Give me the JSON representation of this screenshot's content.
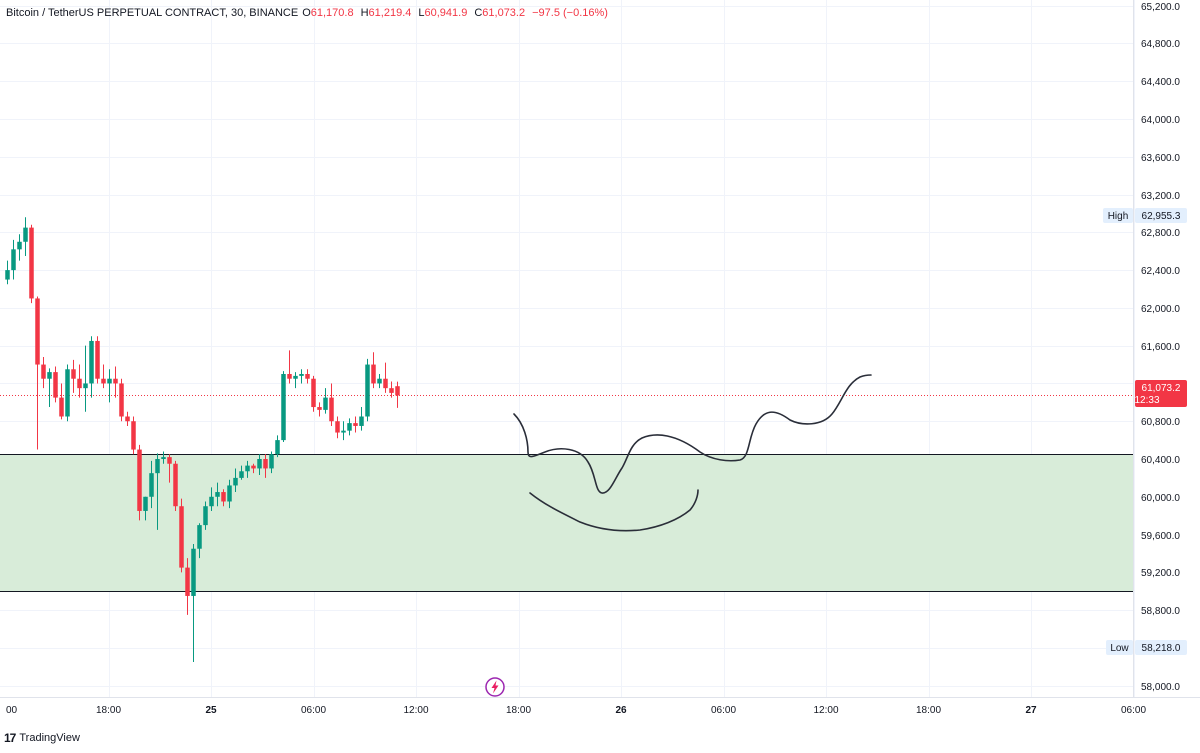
{
  "header": {
    "symbol": "Bitcoin / TetherUS PERPETUAL CONTRACT, 30, BINANCE",
    "o_label": "O",
    "o_value": "61,170.8",
    "h_label": "H",
    "h_value": "61,219.4",
    "l_label": "L",
    "l_value": "60,941.9",
    "c_label": "C",
    "c_value": "61,073.2",
    "change": "−97.5 (−0.16%)"
  },
  "price_axis": {
    "ticks": [
      65200,
      64800,
      64400,
      64000,
      63600,
      63200,
      62800,
      62400,
      62000,
      61600,
      61200,
      60800,
      60400,
      60000,
      59600,
      59200,
      58800,
      58400,
      58000
    ],
    "high_label": "High",
    "high_value": "62,955.3",
    "low_label": "Low",
    "low_value": "58,218.0",
    "last_price": "61,073.2",
    "countdown": "12:33"
  },
  "time_axis": {
    "labels": [
      "00",
      "18:00",
      "25",
      "06:00",
      "12:00",
      "18:00",
      "26",
      "06:00",
      "12:00",
      "18:00",
      "27",
      "06:00"
    ]
  },
  "branding": {
    "logo_text": "TradingView"
  },
  "colors": {
    "up": "#089981",
    "down": "#f23645",
    "zone_fill": "#d8ecd9",
    "line": "#131722"
  },
  "chart_data": {
    "type": "candlestick",
    "interval": "30",
    "ylim": [
      57880,
      65260
    ],
    "last_price": 61073.2,
    "zone": {
      "top": 60450,
      "bottom": 59000
    },
    "time_range": [
      "24 00:00",
      "27 06:00"
    ],
    "candles": [
      {
        "o": 62300,
        "h": 62500,
        "l": 62250,
        "c": 62400
      },
      {
        "o": 62400,
        "h": 62720,
        "l": 62300,
        "c": 62620
      },
      {
        "o": 62620,
        "h": 62780,
        "l": 62500,
        "c": 62700
      },
      {
        "o": 62700,
        "h": 62960,
        "l": 62550,
        "c": 62850
      },
      {
        "o": 62850,
        "h": 62880,
        "l": 62050,
        "c": 62100
      },
      {
        "o": 62100,
        "h": 62120,
        "l": 60500,
        "c": 61400
      },
      {
        "o": 61400,
        "h": 61480,
        "l": 61150,
        "c": 61250
      },
      {
        "o": 61250,
        "h": 61360,
        "l": 60950,
        "c": 61320
      },
      {
        "o": 61320,
        "h": 61380,
        "l": 61000,
        "c": 61050
      },
      {
        "o": 61050,
        "h": 61200,
        "l": 60820,
        "c": 60850
      },
      {
        "o": 60850,
        "h": 61400,
        "l": 60800,
        "c": 61350
      },
      {
        "o": 61350,
        "h": 61450,
        "l": 61100,
        "c": 61250
      },
      {
        "o": 61250,
        "h": 61400,
        "l": 61050,
        "c": 61150
      },
      {
        "o": 61150,
        "h": 61600,
        "l": 60900,
        "c": 61200
      },
      {
        "o": 61200,
        "h": 61700,
        "l": 61050,
        "c": 61650
      },
      {
        "o": 61650,
        "h": 61700,
        "l": 61200,
        "c": 61250
      },
      {
        "o": 61250,
        "h": 61400,
        "l": 61150,
        "c": 61200
      },
      {
        "o": 61200,
        "h": 61350,
        "l": 61000,
        "c": 61250
      },
      {
        "o": 61250,
        "h": 61380,
        "l": 61050,
        "c": 61200
      },
      {
        "o": 61200,
        "h": 61250,
        "l": 60800,
        "c": 60850
      },
      {
        "o": 60850,
        "h": 60900,
        "l": 60750,
        "c": 60800
      },
      {
        "o": 60800,
        "h": 60850,
        "l": 60450,
        "c": 60500
      },
      {
        "o": 60500,
        "h": 60550,
        "l": 59750,
        "c": 59850
      },
      {
        "o": 59850,
        "h": 60000,
        "l": 59750,
        "c": 60000
      },
      {
        "o": 60000,
        "h": 60380,
        "l": 59880,
        "c": 60250
      },
      {
        "o": 60250,
        "h": 60460,
        "l": 59650,
        "c": 60400
      },
      {
        "o": 60400,
        "h": 60480,
        "l": 60350,
        "c": 60420
      },
      {
        "o": 60420,
        "h": 60450,
        "l": 60150,
        "c": 60350
      },
      {
        "o": 60350,
        "h": 60380,
        "l": 59850,
        "c": 59900
      },
      {
        "o": 59900,
        "h": 59980,
        "l": 59200,
        "c": 59250
      },
      {
        "o": 59250,
        "h": 59350,
        "l": 58750,
        "c": 58950
      },
      {
        "o": 58950,
        "h": 59500,
        "l": 58250,
        "c": 59450
      },
      {
        "o": 59450,
        "h": 59720,
        "l": 59350,
        "c": 59700
      },
      {
        "o": 59700,
        "h": 59950,
        "l": 59650,
        "c": 59900
      },
      {
        "o": 59900,
        "h": 60100,
        "l": 59850,
        "c": 60000
      },
      {
        "o": 60000,
        "h": 60150,
        "l": 59900,
        "c": 60050
      },
      {
        "o": 60050,
        "h": 60080,
        "l": 59900,
        "c": 59950
      },
      {
        "o": 59950,
        "h": 60180,
        "l": 59880,
        "c": 60120
      },
      {
        "o": 60120,
        "h": 60300,
        "l": 60050,
        "c": 60200
      },
      {
        "o": 60200,
        "h": 60330,
        "l": 60180,
        "c": 60270
      },
      {
        "o": 60270,
        "h": 60380,
        "l": 60200,
        "c": 60330
      },
      {
        "o": 60330,
        "h": 60350,
        "l": 60250,
        "c": 60300
      },
      {
        "o": 60300,
        "h": 60450,
        "l": 60230,
        "c": 60400
      },
      {
        "o": 60400,
        "h": 60450,
        "l": 60200,
        "c": 60300
      },
      {
        "o": 60300,
        "h": 60480,
        "l": 60250,
        "c": 60450
      },
      {
        "o": 60450,
        "h": 60650,
        "l": 60420,
        "c": 60600
      },
      {
        "o": 60600,
        "h": 61330,
        "l": 60580,
        "c": 61300
      },
      {
        "o": 61300,
        "h": 61550,
        "l": 61200,
        "c": 61250
      },
      {
        "o": 61250,
        "h": 61320,
        "l": 61150,
        "c": 61280
      },
      {
        "o": 61280,
        "h": 61350,
        "l": 61200,
        "c": 61300
      },
      {
        "o": 61300,
        "h": 61350,
        "l": 61200,
        "c": 61250
      },
      {
        "o": 61250,
        "h": 61280,
        "l": 60900,
        "c": 60950
      },
      {
        "o": 60950,
        "h": 61000,
        "l": 60850,
        "c": 60920
      },
      {
        "o": 60920,
        "h": 61150,
        "l": 60880,
        "c": 61050
      },
      {
        "o": 61050,
        "h": 61200,
        "l": 60750,
        "c": 60800
      },
      {
        "o": 60800,
        "h": 60850,
        "l": 60620,
        "c": 60680
      },
      {
        "o": 60680,
        "h": 60800,
        "l": 60600,
        "c": 60700
      },
      {
        "o": 60700,
        "h": 60830,
        "l": 60650,
        "c": 60780
      },
      {
        "o": 60780,
        "h": 60850,
        "l": 60680,
        "c": 60750
      },
      {
        "o": 60750,
        "h": 60950,
        "l": 60700,
        "c": 60850
      },
      {
        "o": 60850,
        "h": 61460,
        "l": 60800,
        "c": 61400
      },
      {
        "o": 61400,
        "h": 61530,
        "l": 61150,
        "c": 61200
      },
      {
        "o": 61200,
        "h": 61300,
        "l": 61150,
        "c": 61250
      },
      {
        "o": 61250,
        "h": 61420,
        "l": 61100,
        "c": 61150
      },
      {
        "o": 61150,
        "h": 61220,
        "l": 61050,
        "c": 61100
      },
      {
        "o": 61170.8,
        "h": 61219.4,
        "l": 60941.9,
        "c": 61073.2
      }
    ]
  }
}
